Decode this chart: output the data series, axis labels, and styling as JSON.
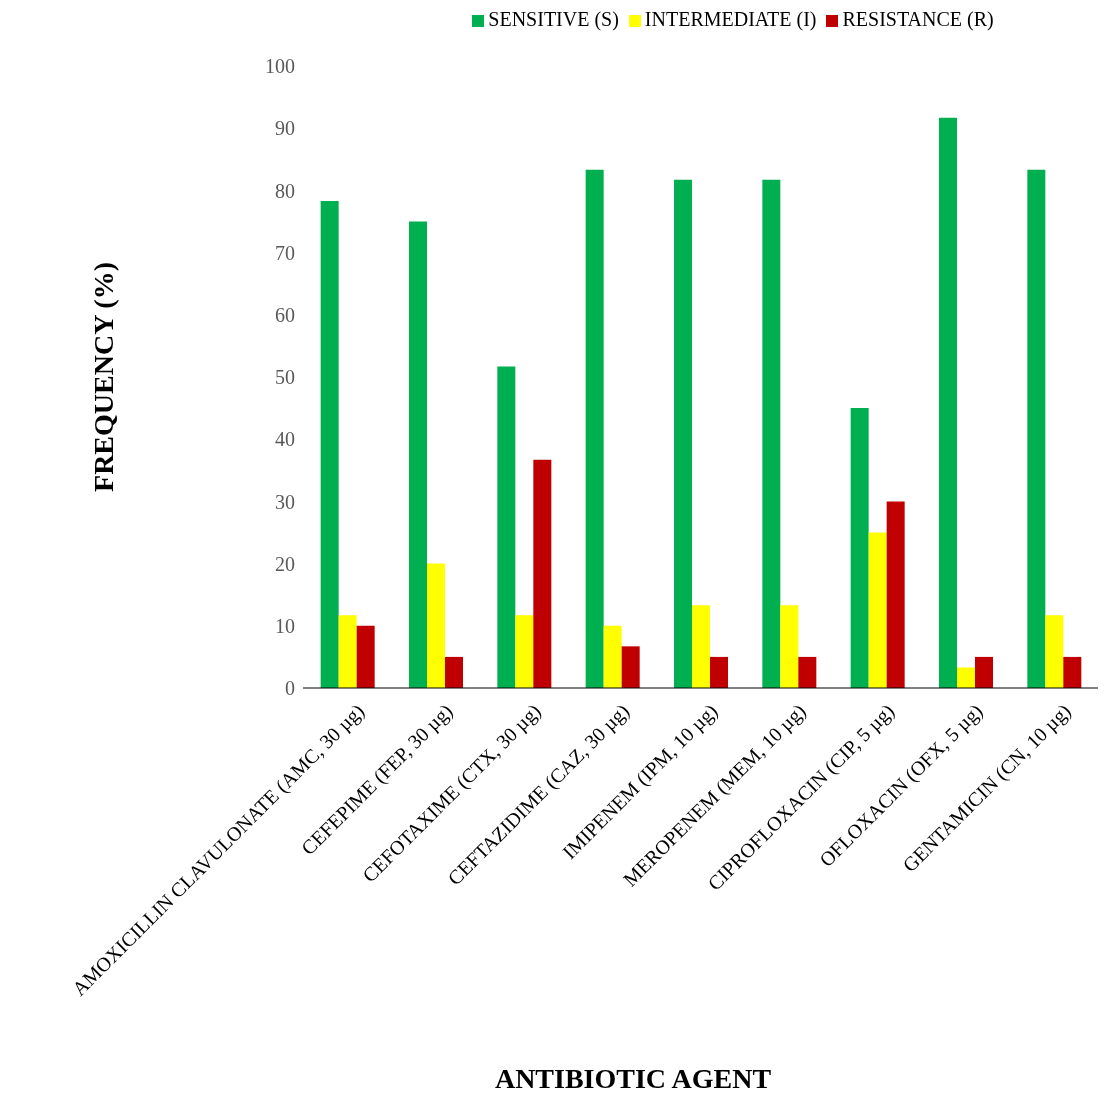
{
  "chart_data": {
    "type": "bar",
    "xlabel": "ANTIBIOTIC AGENT",
    "ylabel": "FREQUENCY (%)",
    "categories": [
      "AMOXICILLIN CLAVULONATE (AMC, 30 µg)",
      "CEFEPIME (FEP, 30 µg)",
      "CEFOTAXIME (CTX, 30 µg)",
      "CEFTAZIDIME (CAZ, 30 µg)",
      "IMIPENEM (IPM, 10 µg)",
      "MEROPENEM (MEM, 10 µg)",
      "CIPROFLOXACIN (CIP, 5 µg)",
      "OFLOXACIN (OFX, 5 µg)",
      "GENTAMICIN (CN, 10 µg)"
    ],
    "series": [
      {
        "name": "SENSITIVE (S)",
        "color": "#00b050",
        "values": [
          78.3,
          75,
          51.7,
          83.3,
          81.7,
          81.7,
          45,
          91.7,
          83.3
        ]
      },
      {
        "name": "INTERMEDIATE (I)",
        "color": "#ffff00",
        "values": [
          11.7,
          20,
          11.7,
          10,
          13.3,
          13.3,
          25,
          3.3,
          11.7
        ]
      },
      {
        "name": "RESISTANCE (R)",
        "color": "#c00000",
        "values": [
          10,
          5,
          36.7,
          6.7,
          5,
          5,
          30,
          5,
          5
        ]
      }
    ],
    "ylim": [
      0,
      100
    ],
    "yticks": [
      0,
      10,
      20,
      30,
      40,
      50,
      60,
      70,
      80,
      90,
      100
    ],
    "legend": "top"
  }
}
